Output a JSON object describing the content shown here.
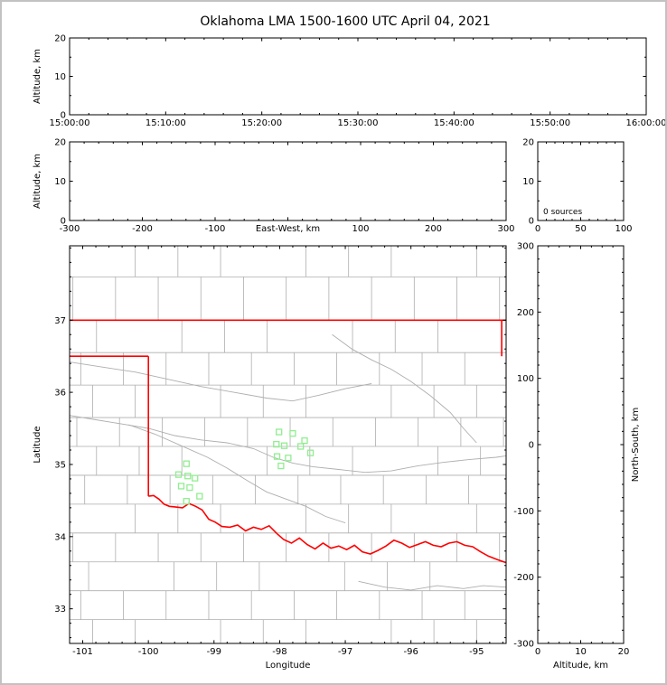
{
  "title": "Oklahoma LMA 1500-1600 UTC April 04, 2021",
  "colors": {
    "state_border": "#ff0000",
    "county_lines": "#aeaeae",
    "rivers": "#aeaeae",
    "stations": "#90ee90",
    "axes": "#000000",
    "frame": "#c2c2c2"
  },
  "chart_data": [
    {
      "id": "time-height-panel",
      "type": "scatter",
      "ylabel": "Altitude, km",
      "x_tick_labels": [
        "15:00:00",
        "15:10:00",
        "15:20:00",
        "15:30:00",
        "15:40:00",
        "15:50:00",
        "16:00:00"
      ],
      "y_ticks": [
        0,
        10,
        20
      ],
      "y_tick_labels": [
        "0",
        "10",
        "20"
      ],
      "ylim": [
        0,
        20
      ],
      "points": []
    },
    {
      "id": "east-west-height-panel",
      "type": "scatter",
      "xlabel": "East-West, km",
      "ylabel": "Altitude, km",
      "x_ticks": [
        -300,
        -200,
        -100,
        0,
        100,
        200,
        300
      ],
      "x_tick_labels": [
        "-300",
        "-200",
        "-100",
        "",
        "100",
        "200",
        "300"
      ],
      "xlim": [
        -300,
        300
      ],
      "y_ticks": [
        0,
        10,
        20
      ],
      "y_tick_labels": [
        "0",
        "10",
        "20"
      ],
      "ylim": [
        0,
        20
      ],
      "points": []
    },
    {
      "id": "source-histogram-panel",
      "type": "line",
      "annotation": "0 sources",
      "x_ticks": [
        0,
        50,
        100
      ],
      "x_tick_labels": [
        "0",
        "50",
        "100"
      ],
      "xlim": [
        0,
        100
      ],
      "y_ticks": [
        0,
        10,
        20
      ],
      "y_tick_labels": [
        "0",
        "10",
        "20"
      ],
      "ylim": [
        0,
        20
      ],
      "points": []
    },
    {
      "id": "plan-view-map-panel",
      "type": "scatter",
      "xlabel": "Longitude",
      "ylabel": "Latitude",
      "x_ticks": [
        -101,
        -100,
        -99,
        -98,
        -97,
        -96,
        -95
      ],
      "x_tick_labels": [
        "-101",
        "-100",
        "-99",
        "-98",
        "-97",
        "-96",
        "-95"
      ],
      "xlim": [
        -101.2,
        -94.55
      ],
      "y_ticks": [
        33,
        34,
        35,
        36,
        37
      ],
      "y_tick_labels": [
        "33",
        "34",
        "35",
        "36",
        "37"
      ],
      "ylim": [
        32.52,
        38.03
      ],
      "stations": [
        [
          -98.01,
          35.45
        ],
        [
          -97.8,
          35.43
        ],
        [
          -98.05,
          35.28
        ],
        [
          -97.93,
          35.26
        ],
        [
          -97.68,
          35.25
        ],
        [
          -97.62,
          35.33
        ],
        [
          -97.53,
          35.16
        ],
        [
          -98.04,
          35.11
        ],
        [
          -97.87,
          35.09
        ],
        [
          -97.98,
          34.98
        ],
        [
          -99.42,
          35.01
        ],
        [
          -99.54,
          34.86
        ],
        [
          -99.4,
          34.84
        ],
        [
          -99.29,
          34.81
        ],
        [
          -99.5,
          34.7
        ],
        [
          -99.37,
          34.68
        ],
        [
          -99.22,
          34.56
        ],
        [
          -99.42,
          34.49
        ]
      ],
      "state_border": [
        [
          [
            -101.2,
            37.0
          ],
          [
            -94.55,
            37.0
          ]
        ],
        [
          [
            -101.2,
            36.5
          ],
          [
            -100.0,
            36.5
          ]
        ],
        [
          [
            -100.0,
            36.5
          ],
          [
            -100.0,
            34.56
          ]
        ],
        [
          [
            -94.618,
            37.0
          ],
          [
            -94.618,
            36.5
          ]
        ],
        [
          [
            -100.0,
            34.56
          ],
          [
            -99.92,
            34.57
          ],
          [
            -99.84,
            34.52
          ],
          [
            -99.76,
            34.45
          ],
          [
            -99.68,
            34.42
          ],
          [
            -99.58,
            34.41
          ],
          [
            -99.48,
            34.4
          ],
          [
            -99.38,
            34.46
          ],
          [
            -99.28,
            34.42
          ],
          [
            -99.18,
            34.37
          ],
          [
            -99.08,
            34.24
          ],
          [
            -98.98,
            34.2
          ],
          [
            -98.88,
            34.14
          ],
          [
            -98.76,
            34.13
          ],
          [
            -98.64,
            34.16
          ],
          [
            -98.52,
            34.08
          ],
          [
            -98.4,
            34.13
          ],
          [
            -98.28,
            34.1
          ],
          [
            -98.16,
            34.15
          ],
          [
            -98.04,
            34.04
          ],
          [
            -97.94,
            33.96
          ],
          [
            -97.82,
            33.91
          ],
          [
            -97.7,
            33.98
          ],
          [
            -97.58,
            33.89
          ],
          [
            -97.46,
            33.83
          ],
          [
            -97.34,
            33.91
          ],
          [
            -97.22,
            33.84
          ],
          [
            -97.1,
            33.87
          ],
          [
            -96.98,
            33.82
          ],
          [
            -96.86,
            33.88
          ],
          [
            -96.74,
            33.79
          ],
          [
            -96.62,
            33.76
          ],
          [
            -96.5,
            33.81
          ],
          [
            -96.38,
            33.87
          ],
          [
            -96.26,
            33.95
          ],
          [
            -96.14,
            33.91
          ],
          [
            -96.02,
            33.85
          ],
          [
            -95.9,
            33.89
          ],
          [
            -95.78,
            33.93
          ],
          [
            -95.66,
            33.88
          ],
          [
            -95.54,
            33.86
          ],
          [
            -95.42,
            33.91
          ],
          [
            -95.3,
            33.93
          ],
          [
            -95.18,
            33.88
          ],
          [
            -95.06,
            33.86
          ],
          [
            -94.94,
            33.79
          ],
          [
            -94.82,
            33.73
          ],
          [
            -94.68,
            33.68
          ],
          [
            -94.55,
            33.64
          ]
        ]
      ],
      "rivers": [
        [
          [
            -101.2,
            35.68
          ],
          [
            -100.8,
            35.62
          ],
          [
            -100.4,
            35.56
          ],
          [
            -100.0,
            35.5
          ],
          [
            -99.6,
            35.4
          ],
          [
            -99.2,
            35.34
          ],
          [
            -98.8,
            35.3
          ],
          [
            -98.4,
            35.22
          ],
          [
            -98.1,
            35.1
          ],
          [
            -97.8,
            35.02
          ],
          [
            -97.5,
            34.97
          ],
          [
            -97.1,
            34.93
          ],
          [
            -96.7,
            34.89
          ],
          [
            -96.3,
            34.91
          ],
          [
            -95.9,
            34.98
          ],
          [
            -95.5,
            35.03
          ],
          [
            -95.1,
            35.07
          ],
          [
            -94.7,
            35.1
          ],
          [
            -94.55,
            35.12
          ]
        ],
        [
          [
            -101.2,
            36.42
          ],
          [
            -100.7,
            36.35
          ],
          [
            -100.2,
            36.28
          ],
          [
            -99.7,
            36.18
          ],
          [
            -99.2,
            36.08
          ],
          [
            -98.7,
            36.0
          ],
          [
            -98.2,
            35.92
          ],
          [
            -97.8,
            35.88
          ],
          [
            -97.4,
            35.96
          ],
          [
            -97.0,
            36.05
          ],
          [
            -96.6,
            36.12
          ]
        ],
        [
          [
            -100.3,
            35.55
          ],
          [
            -99.9,
            35.42
          ],
          [
            -99.5,
            35.26
          ],
          [
            -99.1,
            35.1
          ],
          [
            -98.8,
            34.95
          ],
          [
            -98.5,
            34.78
          ],
          [
            -98.2,
            34.62
          ],
          [
            -97.9,
            34.52
          ],
          [
            -97.6,
            34.42
          ],
          [
            -97.3,
            34.28
          ],
          [
            -97.0,
            34.19
          ]
        ],
        [
          [
            -97.2,
            36.8
          ],
          [
            -96.9,
            36.6
          ],
          [
            -96.6,
            36.45
          ],
          [
            -96.3,
            36.32
          ],
          [
            -96.0,
            36.15
          ],
          [
            -95.7,
            35.95
          ],
          [
            -95.4,
            35.72
          ],
          [
            -95.2,
            35.5
          ],
          [
            -95.0,
            35.3
          ]
        ],
        [
          [
            -96.8,
            33.38
          ],
          [
            -96.4,
            33.3
          ],
          [
            -96.0,
            33.26
          ],
          [
            -95.6,
            33.32
          ],
          [
            -95.2,
            33.28
          ],
          [
            -94.9,
            33.32
          ],
          [
            -94.55,
            33.3
          ]
        ]
      ],
      "county_grid": {
        "lat_levels": [
          38.03,
          37.6,
          37.0,
          36.55,
          36.1,
          35.65,
          35.25,
          34.85,
          34.45,
          34.05,
          33.65,
          33.25,
          32.85,
          32.52
        ],
        "h_lats": [
          37.6,
          36.55,
          36.1,
          35.65,
          35.25,
          34.85,
          34.45,
          34.05,
          33.65,
          33.25,
          32.85
        ],
        "v_start": -101.15,
        "v_step": 0.65,
        "band_offsets": [
          0.3,
          0.0,
          0.36,
          0.12,
          0.3,
          0.06,
          0.36,
          0.18,
          0.3,
          0.0,
          0.24,
          0.12,
          0.3
        ]
      },
      "points": []
    },
    {
      "id": "north-south-height-panel",
      "type": "scatter",
      "xlabel": "Altitude, km",
      "ylabel": "North-South, km",
      "x_ticks": [
        0,
        10,
        20
      ],
      "x_tick_labels": [
        "0",
        "10",
        "20"
      ],
      "xlim": [
        0,
        20
      ],
      "y_ticks": [
        -300,
        -200,
        -100,
        0,
        100,
        200,
        300
      ],
      "y_tick_labels": [
        "-300",
        "-200",
        "-100",
        "0",
        "100",
        "200",
        "300"
      ],
      "ylim": [
        -300,
        300
      ],
      "points": []
    }
  ]
}
